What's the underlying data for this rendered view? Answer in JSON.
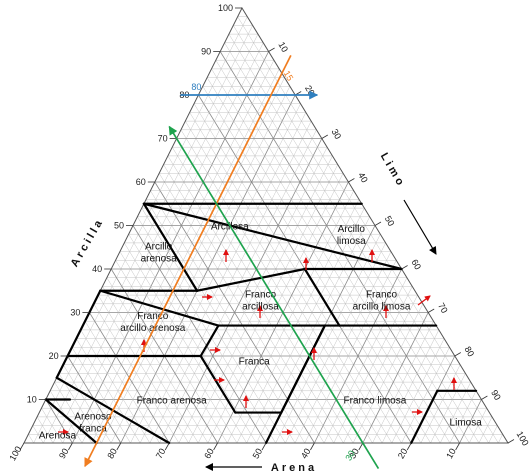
{
  "diagram": {
    "axes": {
      "clay": {
        "title": "Arcilla"
      },
      "silt": {
        "title": "Limo"
      },
      "sand": {
        "title": "Arena"
      }
    },
    "ticks": {
      "clay": [
        "10",
        "20",
        "30",
        "40",
        "50",
        "60",
        "70",
        "80",
        "90",
        "100"
      ],
      "silt": [
        "10",
        "20",
        "30",
        "40",
        "50",
        "60",
        "70",
        "80",
        "90",
        "100"
      ],
      "sand": [
        "10",
        "20",
        "30",
        "40",
        "50",
        "60",
        "70",
        "80",
        "90",
        "100"
      ]
    },
    "classes": [
      {
        "id": "arcillosa",
        "lines": [
          "Arcillosa"
        ],
        "sand": 30,
        "silt": 20,
        "clay": 50
      },
      {
        "id": "arcillo-limosa",
        "lines": [
          "Arcillo",
          "limosa"
        ],
        "sand": 6,
        "silt": 46,
        "clay": 48
      },
      {
        "id": "arcillo-arenosa",
        "lines": [
          "Arcillo",
          "arenosa"
        ],
        "sand": 48,
        "silt": 8,
        "clay": 44
      },
      {
        "id": "franco-arcillosa",
        "lines": [
          "Franco",
          "arcillosa"
        ],
        "sand": 33,
        "silt": 34,
        "clay": 33
      },
      {
        "id": "franco-arcillo-limosa",
        "lines": [
          "Franco",
          "arcillo limosa"
        ],
        "sand": 8,
        "silt": 59,
        "clay": 33
      },
      {
        "id": "franco-arcillo-arenosa",
        "lines": [
          "Franco",
          "arcillo arenosa"
        ],
        "sand": 58,
        "silt": 14,
        "clay": 28
      },
      {
        "id": "franca",
        "lines": [
          "Franca"
        ],
        "sand": 42,
        "silt": 39,
        "clay": 19
      },
      {
        "id": "franco-limosa",
        "lines": [
          "Franco limosa"
        ],
        "sand": 22,
        "silt": 68,
        "clay": 10
      },
      {
        "id": "franco-arenosa",
        "lines": [
          "Franco arenosa"
        ],
        "sand": 64,
        "silt": 26,
        "clay": 10
      },
      {
        "id": "limosa",
        "lines": [
          "Limosa"
        ],
        "sand": 6,
        "silt": 89,
        "clay": 5
      },
      {
        "id": "arenoso-franca",
        "lines": [
          "Arenoso",
          "franca"
        ],
        "sand": 83,
        "silt": 12,
        "clay": 5
      },
      {
        "id": "arenosa",
        "lines": [
          "Arenosa"
        ],
        "sand": 92,
        "silt": 6,
        "clay": 2
      }
    ],
    "overlay_lines": [
      {
        "id": "clay-line",
        "color": "#2f7fbf",
        "label": "80",
        "from": {
          "sand": 20,
          "silt": 0,
          "clay": 80
        },
        "to": {
          "sand": 0,
          "silt": 20,
          "clay": 80
        }
      },
      {
        "id": "silt-line",
        "color": "#f07d20",
        "label": "15",
        "from": {
          "sand": 85,
          "silt": 15,
          "clay": 0
        },
        "to": {
          "sand": 0,
          "silt": 15,
          "clay": 85
        }
      },
      {
        "id": "sand-line",
        "color": "#1fa34e",
        "label": "30",
        "from": {
          "sand": 30,
          "silt": 70,
          "clay": 0
        },
        "to": {
          "sand": 30,
          "silt": 0,
          "clay": 70
        }
      }
    ],
    "colors": {
      "grid": "#bdbdbd",
      "boundary": "#000000",
      "arrow": "#e01010",
      "background": "#ffffff"
    }
  }
}
